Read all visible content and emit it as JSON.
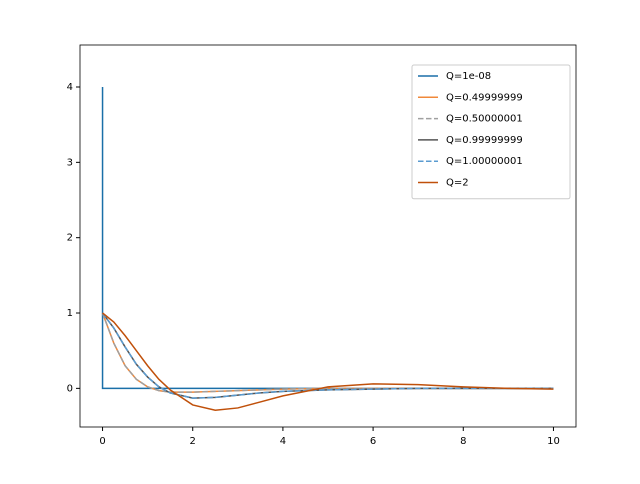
{
  "chart_data": {
    "type": "line",
    "xlim": [
      -0.5,
      10.5
    ],
    "ylim": [
      -0.513,
      4.385
    ],
    "xticks": [
      0,
      2,
      4,
      6,
      8,
      10
    ],
    "yticks": [
      0,
      1,
      2,
      3,
      4
    ],
    "legend": "upper right",
    "series": [
      {
        "name": "Q=1e-08",
        "color": "#1a6fa8",
        "linestyle": "-",
        "x": [
          0,
          0,
          10
        ],
        "values": [
          4,
          0,
          0
        ]
      },
      {
        "name": "Q=0.49999999",
        "color": "#f0883a",
        "linestyle": "-",
        "x": [
          0,
          0.25,
          0.5,
          0.75,
          1,
          1.25,
          1.5,
          2,
          2.5,
          3,
          3.5,
          4,
          5,
          6,
          7,
          8,
          9,
          10
        ],
        "values": [
          1,
          0.6,
          0.3,
          0.12,
          0.02,
          -0.03,
          -0.05,
          -0.05,
          -0.04,
          -0.03,
          -0.02,
          -0.01,
          0,
          0,
          0,
          0,
          0,
          0
        ]
      },
      {
        "name": "Q=0.50000001",
        "color": "#a0a0a0",
        "linestyle": "--",
        "x": [
          0,
          0.25,
          0.5,
          0.75,
          1,
          1.25,
          1.5,
          2,
          2.5,
          3,
          3.5,
          4,
          5,
          6,
          7,
          8,
          9,
          10
        ],
        "values": [
          1,
          0.6,
          0.3,
          0.12,
          0.02,
          -0.03,
          -0.05,
          -0.05,
          -0.04,
          -0.03,
          -0.02,
          -0.01,
          0,
          0,
          0,
          0,
          0,
          0
        ]
      },
      {
        "name": "Q=0.99999999",
        "color": "#555555",
        "linestyle": "-",
        "x": [
          0,
          0.25,
          0.5,
          0.75,
          1,
          1.25,
          1.5,
          2,
          2.5,
          3,
          3.5,
          4,
          5,
          6,
          7,
          8,
          9,
          10
        ],
        "values": [
          1,
          0.8,
          0.55,
          0.32,
          0.15,
          0.02,
          -0.06,
          -0.13,
          -0.12,
          -0.09,
          -0.06,
          -0.04,
          -0.02,
          -0.01,
          0,
          0,
          0,
          0
        ]
      },
      {
        "name": "Q=1.00000001",
        "color": "#5a9bd0",
        "linestyle": "--",
        "x": [
          0,
          0.25,
          0.5,
          0.75,
          1,
          1.25,
          1.5,
          2,
          2.5,
          3,
          3.5,
          4,
          5,
          6,
          7,
          8,
          9,
          10
        ],
        "values": [
          1,
          0.8,
          0.55,
          0.32,
          0.15,
          0.02,
          -0.06,
          -0.13,
          -0.12,
          -0.09,
          -0.06,
          -0.04,
          -0.02,
          -0.01,
          0,
          0,
          0,
          0
        ]
      },
      {
        "name": "Q=2",
        "color": "#c0500a",
        "linestyle": "-",
        "x": [
          0,
          0.25,
          0.5,
          0.75,
          1,
          1.25,
          1.5,
          2,
          2.5,
          3,
          3.5,
          4,
          5,
          6,
          7,
          8,
          9,
          10
        ],
        "values": [
          1,
          0.88,
          0.7,
          0.5,
          0.3,
          0.12,
          -0.02,
          -0.22,
          -0.29,
          -0.26,
          -0.18,
          -0.1,
          0.02,
          0.06,
          0.05,
          0.02,
          0,
          -0.01
        ]
      }
    ]
  }
}
